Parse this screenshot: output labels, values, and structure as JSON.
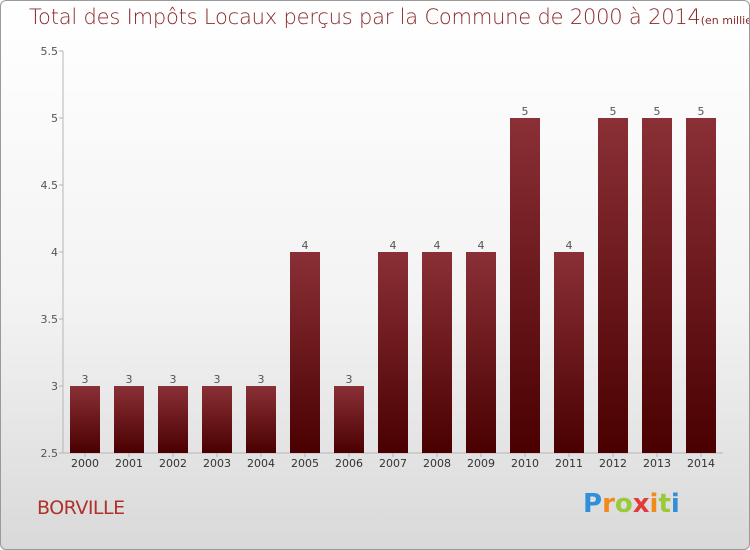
{
  "chart_data": {
    "type": "bar",
    "title": "Total des Impôts Locaux perçus par la Commune de 2000 à 2014",
    "subtitle": "(en milliers d'€)",
    "categories": [
      "2000",
      "2001",
      "2002",
      "2003",
      "2004",
      "2005",
      "2006",
      "2007",
      "2008",
      "2009",
      "2010",
      "2011",
      "2012",
      "2013",
      "2014"
    ],
    "values": [
      3,
      3,
      3,
      3,
      3,
      4,
      3,
      4,
      4,
      4,
      5,
      4,
      5,
      5,
      5
    ],
    "ylim": [
      2.5,
      5.5
    ],
    "yticks": [
      "2.5",
      "3",
      "3.5",
      "4",
      "4.5",
      "5",
      "5.5"
    ],
    "grid": false,
    "bar_color_top": "#8a3036",
    "bar_color_bottom": "#4a0000"
  },
  "footer": {
    "commune": "BORVILLE",
    "logo_letters": [
      "P",
      "r",
      "o",
      "x",
      "i",
      "t",
      "i"
    ]
  }
}
